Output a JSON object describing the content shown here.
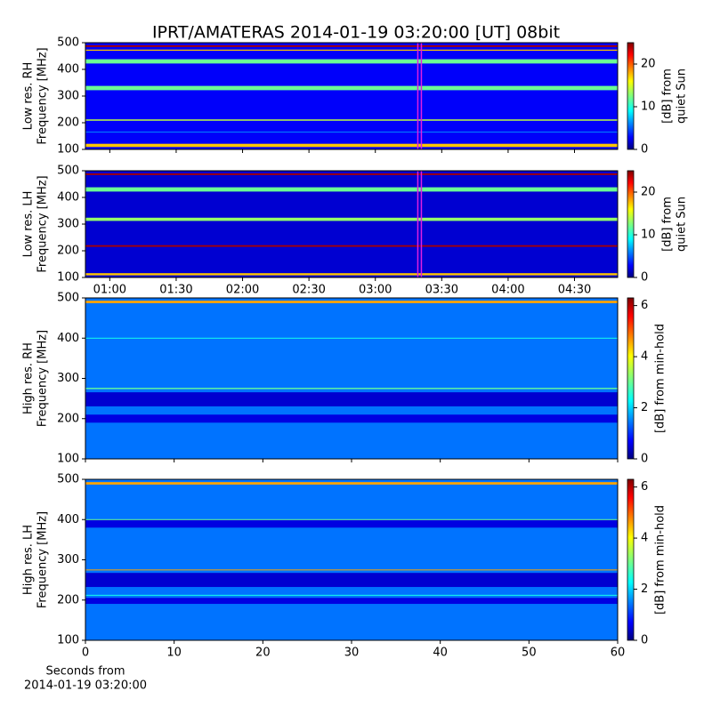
{
  "chart_data": [
    {
      "type": "heatmap",
      "title": "IPRT/AMATERAS 2014-01-19 03:20:00 [UT]   08bit",
      "ylabel": [
        "Low res. RH",
        "Frequency [MHz]"
      ],
      "ylim": [
        100,
        500
      ],
      "yticks": [
        100,
        200,
        300,
        400,
        500
      ],
      "xlim": [
        49,
        289.5
      ],
      "clim": [
        0,
        25
      ],
      "cticks": [
        0,
        10,
        20
      ],
      "clabel": [
        "[dB] from",
        "quiet Sun"
      ],
      "background_db": 3,
      "marker": 200,
      "marker_color": "#e020e0",
      "bands": [
        {
          "freq": 487,
          "width": 6,
          "db": 24
        },
        {
          "freq": 472,
          "width": 4,
          "db": 17
        },
        {
          "freq": 430,
          "width": 16,
          "db": 12
        },
        {
          "freq": 330,
          "width": 16,
          "db": 12
        },
        {
          "freq": 210,
          "width": 5,
          "db": 14
        },
        {
          "freq": 165,
          "width": 4,
          "db": 6
        },
        {
          "freq": 115,
          "width": 12,
          "db": 17
        }
      ]
    },
    {
      "type": "heatmap",
      "ylabel": [
        "Low res. LH",
        "Frequency [MHz]"
      ],
      "ylim": [
        100,
        500
      ],
      "yticks": [
        100,
        200,
        300,
        400,
        500
      ],
      "xlim": [
        49,
        289.5
      ],
      "xticks": [
        {
          "value": 60,
          "label": "01:00"
        },
        {
          "value": 90,
          "label": "01:30"
        },
        {
          "value": 120,
          "label": "02:00"
        },
        {
          "value": 150,
          "label": "02:30"
        },
        {
          "value": 180,
          "label": "03:00"
        },
        {
          "value": 210,
          "label": "03:30"
        },
        {
          "value": 240,
          "label": "04:00"
        },
        {
          "value": 270,
          "label": "04:30"
        }
      ],
      "clim": [
        0,
        25
      ],
      "cticks": [
        0,
        10,
        20
      ],
      "clabel": [
        "[dB] from",
        "quiet Sun"
      ],
      "background_db": 2,
      "marker": 200,
      "marker_color": "#e020e0",
      "bands": [
        {
          "freq": 487,
          "width": 6,
          "db": 24
        },
        {
          "freq": 430,
          "width": 16,
          "db": 12
        },
        {
          "freq": 318,
          "width": 12,
          "db": 13
        },
        {
          "freq": 218,
          "width": 6,
          "db": 24
        },
        {
          "freq": 112,
          "width": 8,
          "db": 17
        }
      ]
    },
    {
      "type": "heatmap",
      "ylabel": [
        "High res. RH",
        "Frequency [MHz]"
      ],
      "ylim": [
        100,
        500
      ],
      "yticks": [
        100,
        200,
        300,
        400,
        500
      ],
      "xlim": [
        0,
        60
      ],
      "clim": [
        0,
        6.3
      ],
      "cticks": [
        0,
        2,
        4,
        6
      ],
      "clabel": [
        "[dB] from min-hold"
      ],
      "background_db": 1.5,
      "bands": [
        {
          "freq": 248,
          "width": 35,
          "db": 0.5
        },
        {
          "freq": 200,
          "width": 20,
          "db": 0.6
        },
        {
          "freq": 275,
          "width": 3,
          "db": 3
        },
        {
          "freq": 400,
          "width": 2,
          "db": 2.5
        },
        {
          "freq": 490,
          "width": 6,
          "db": 4.5
        }
      ]
    },
    {
      "type": "heatmap",
      "ylabel": [
        "High res. LH",
        "Frequency [MHz]"
      ],
      "ylim": [
        100,
        500
      ],
      "yticks": [
        100,
        200,
        300,
        400,
        500
      ],
      "xlim": [
        0,
        60
      ],
      "xticks": [
        0,
        10,
        20,
        30,
        40,
        50,
        60
      ],
      "xlabel": [
        "Seconds from",
        "2014-01-19 03:20:00"
      ],
      "clim": [
        0,
        6.3
      ],
      "cticks": [
        0,
        2,
        4,
        6
      ],
      "clabel": [
        "[dB] from min-hold"
      ],
      "background_db": 1.5,
      "bands": [
        {
          "freq": 250,
          "width": 35,
          "db": 0.5
        },
        {
          "freq": 390,
          "width": 20,
          "db": 0.6
        },
        {
          "freq": 198,
          "width": 15,
          "db": 0.6
        },
        {
          "freq": 275,
          "width": 2,
          "db": 4.5
        },
        {
          "freq": 400,
          "width": 2,
          "db": 3
        },
        {
          "freq": 212,
          "width": 2,
          "db": 2.5
        },
        {
          "freq": 490,
          "width": 6,
          "db": 4.5
        }
      ]
    }
  ]
}
